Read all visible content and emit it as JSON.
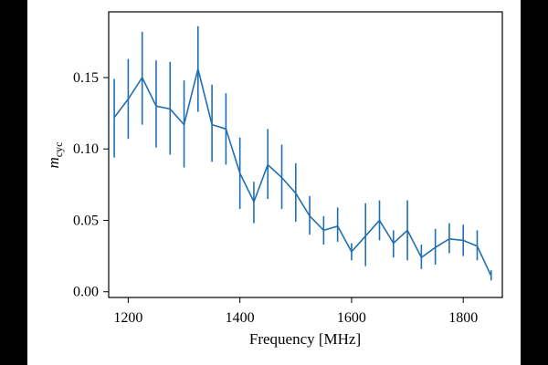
{
  "chart_data": {
    "type": "line",
    "xlabel": "Frequency [MHz]",
    "ylabel_main": "m",
    "ylabel_sub": "cyc",
    "xlim": [
      1165,
      1870
    ],
    "ylim": [
      -0.004,
      0.196
    ],
    "x_ticks": [
      1200,
      1400,
      1600,
      1800
    ],
    "x_tick_labels": [
      "1200",
      "1400",
      "1600",
      "1800"
    ],
    "y_ticks": [
      0.0,
      0.05,
      0.1,
      0.15
    ],
    "y_tick_labels": [
      "0.00",
      "0.05",
      "0.10",
      "0.15"
    ],
    "grid": false,
    "series": [
      {
        "color": "#1f6fb2",
        "x": [
          1175,
          1200,
          1225,
          1250,
          1275,
          1300,
          1325,
          1350,
          1375,
          1400,
          1425,
          1450,
          1475,
          1500,
          1525,
          1550,
          1575,
          1600,
          1625,
          1650,
          1675,
          1700,
          1725,
          1750,
          1775,
          1800,
          1825,
          1850
        ],
        "y": [
          0.122,
          0.135,
          0.15,
          0.13,
          0.128,
          0.117,
          0.156,
          0.117,
          0.114,
          0.083,
          0.063,
          0.089,
          0.08,
          0.069,
          0.053,
          0.043,
          0.046,
          0.028,
          0.039,
          0.05,
          0.034,
          0.043,
          0.024,
          0.031,
          0.037,
          0.036,
          0.032,
          0.011
        ],
        "err_low": [
          0.094,
          0.107,
          0.117,
          0.101,
          0.096,
          0.087,
          0.126,
          0.091,
          0.089,
          0.058,
          0.048,
          0.065,
          0.058,
          0.049,
          0.04,
          0.033,
          0.035,
          0.022,
          0.018,
          0.036,
          0.024,
          0.022,
          0.016,
          0.019,
          0.027,
          0.025,
          0.022,
          0.008
        ],
        "err_high": [
          0.149,
          0.163,
          0.182,
          0.162,
          0.161,
          0.148,
          0.186,
          0.145,
          0.139,
          0.108,
          0.077,
          0.114,
          0.103,
          0.09,
          0.067,
          0.053,
          0.059,
          0.034,
          0.062,
          0.064,
          0.043,
          0.064,
          0.033,
          0.044,
          0.048,
          0.047,
          0.043,
          0.015
        ]
      }
    ]
  }
}
